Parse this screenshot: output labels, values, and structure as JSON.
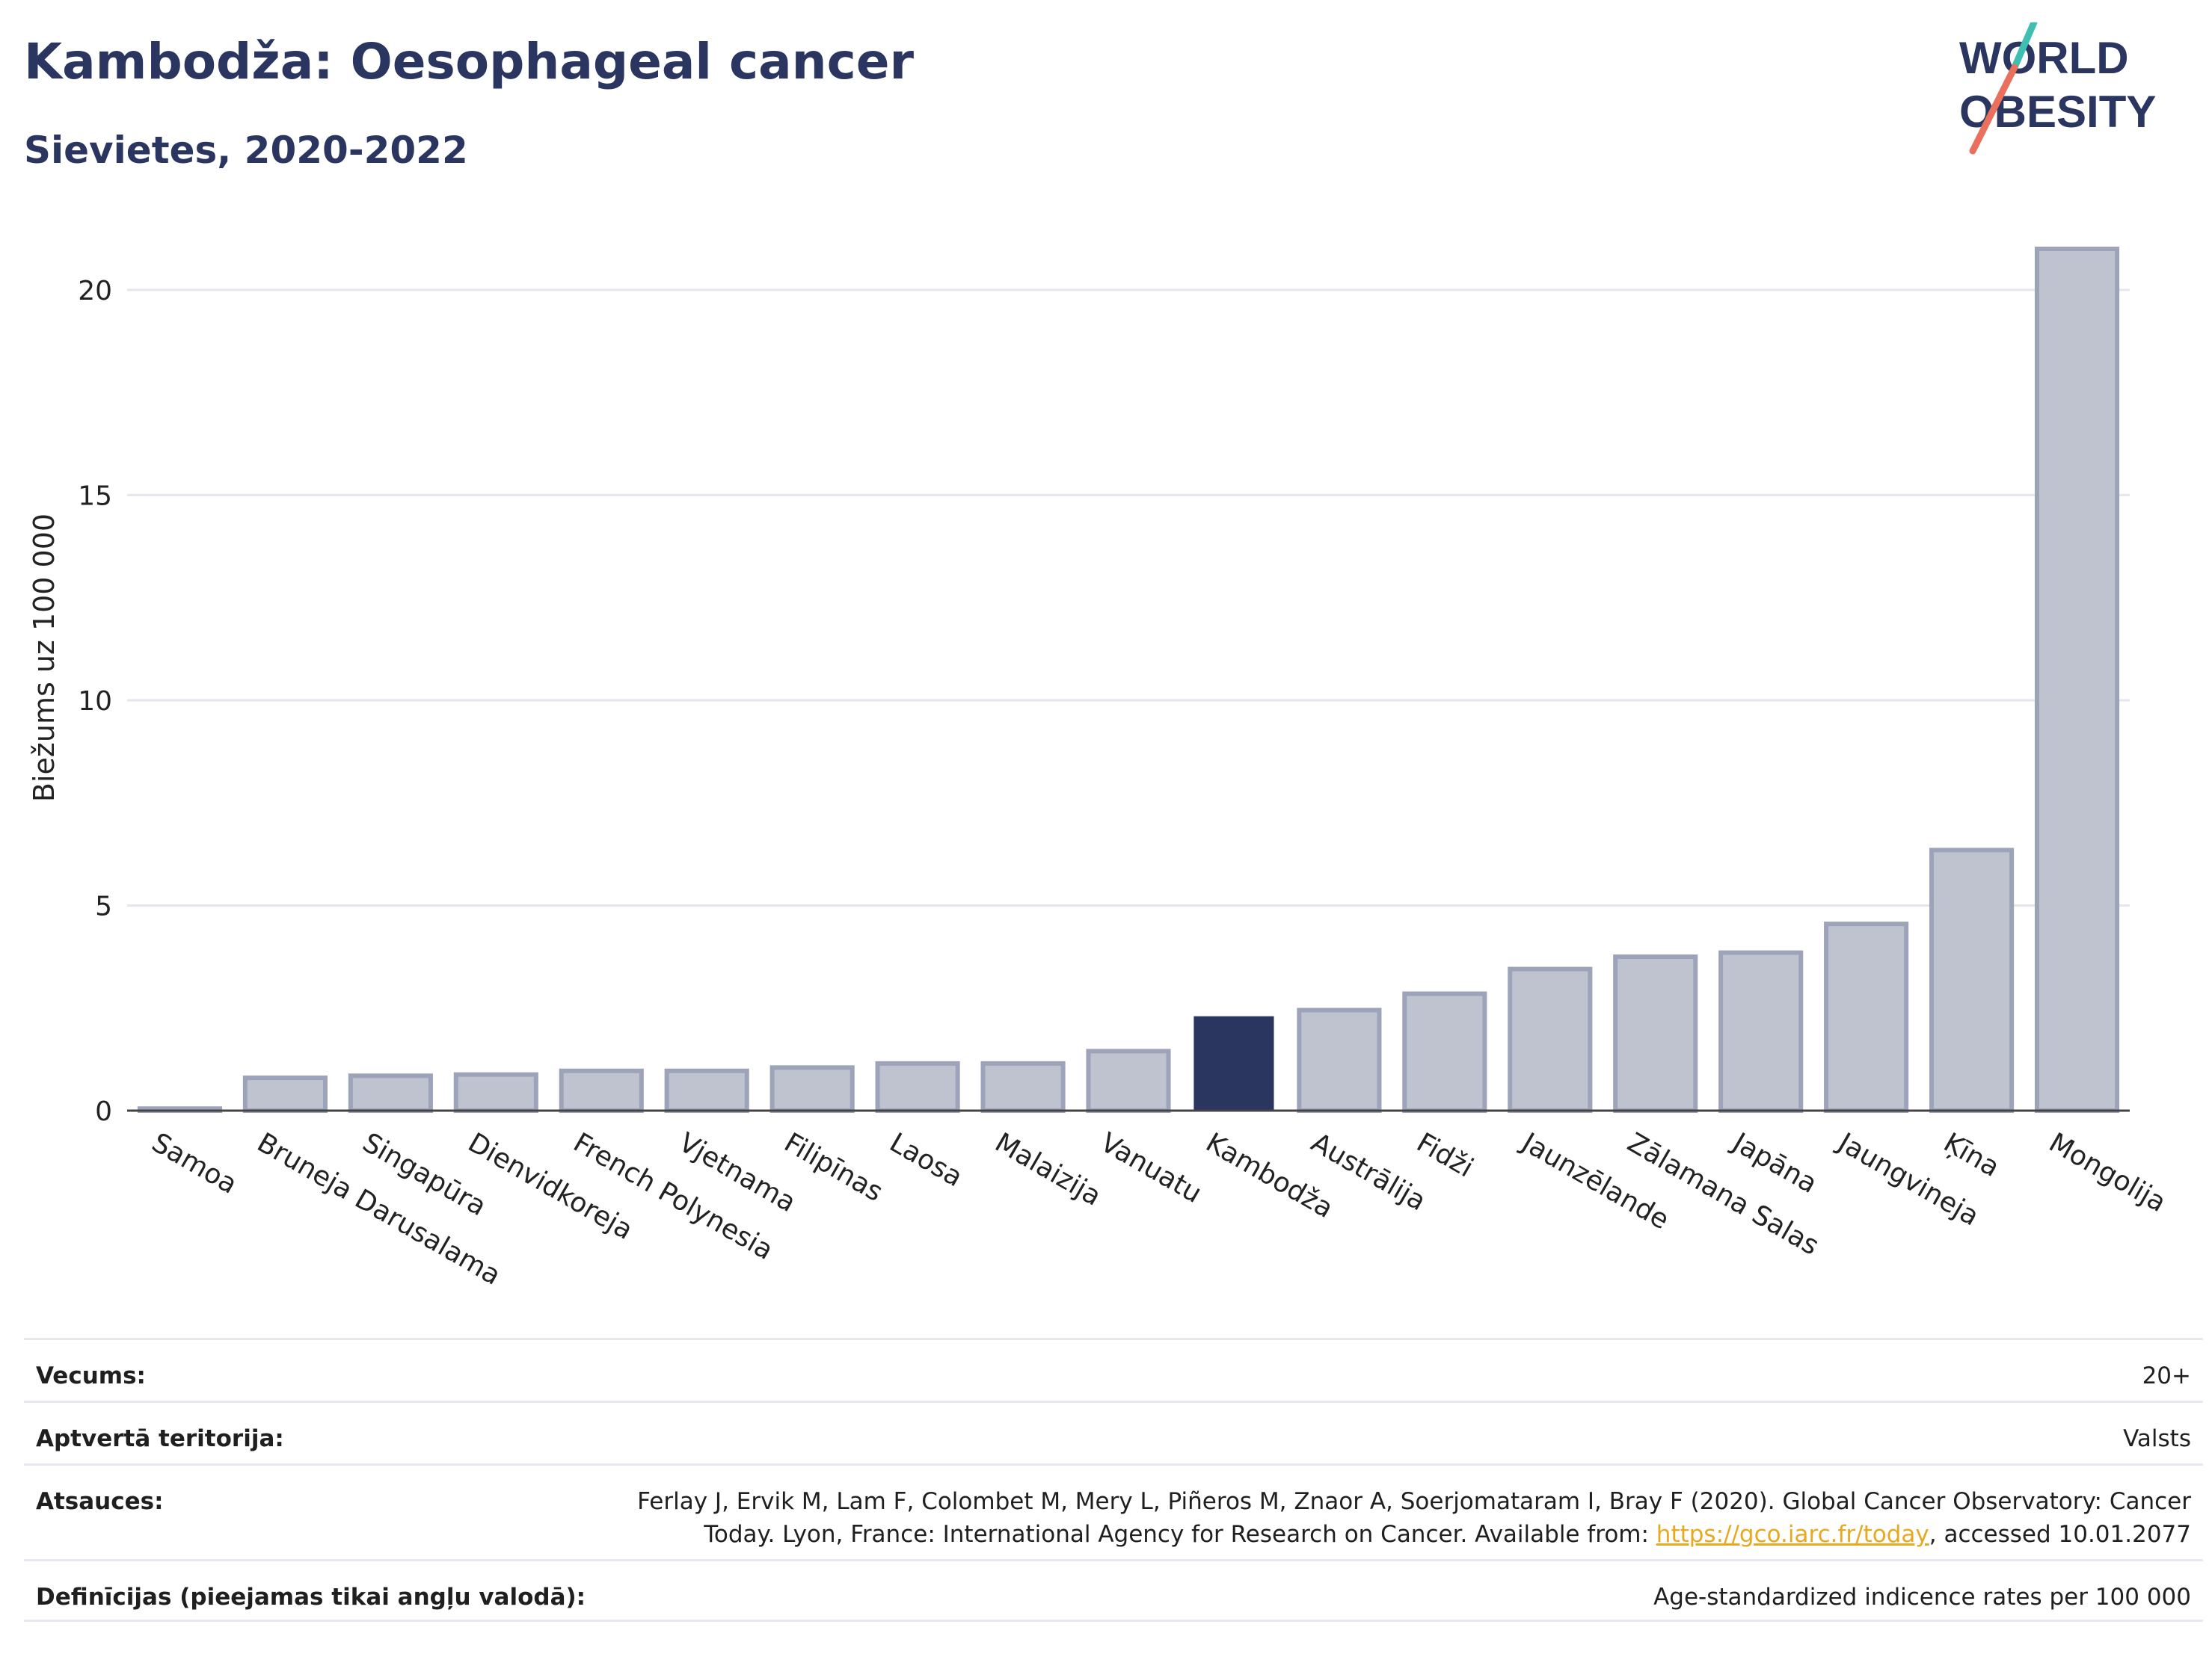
{
  "header": {
    "title": "Kambodža: Oesophageal cancer",
    "subtitle": "Sievietes, 2020-2022"
  },
  "logo": {
    "line1": "WORLD",
    "line2": "OBESITY"
  },
  "chart_data": {
    "type": "bar",
    "ylabel": "Biežums uz 100 000",
    "ylim": [
      0,
      21
    ],
    "yticks": [
      0,
      5,
      10,
      15,
      20
    ],
    "grid": true,
    "highlight": "Kambodža",
    "colors": {
      "bar": "#bfc3cf",
      "bar_border": "#9da3b8",
      "highlight": "#2a3660"
    },
    "categories": [
      "Samoa",
      "Bruneja Darusalama",
      "Singapūra",
      "Dienvidkoreja",
      "French Polynesia",
      "Vjetnama",
      "Filipīnas",
      "Laosa",
      "Malaizija",
      "Vanuatu",
      "Kambodža",
      "Austrālija",
      "Fidži",
      "Jaunzēlande",
      "Zālamana Salas",
      "Japāna",
      "Jaungvineja",
      "Ķīna",
      "Mongolija"
    ],
    "values": [
      0.05,
      0.8,
      0.85,
      0.88,
      0.97,
      0.97,
      1.05,
      1.15,
      1.15,
      1.45,
      2.3,
      2.45,
      2.85,
      3.45,
      3.75,
      3.85,
      4.55,
      6.35,
      21.0
    ]
  },
  "info": {
    "rows": [
      {
        "label": "Vecums:",
        "value": "20+"
      },
      {
        "label": "Aptvertā teritorija:",
        "value": "Valsts"
      },
      {
        "label": "Atsauces:",
        "value_pre": "Ferlay J, Ervik M, Lam F, Colombet M, Mery L, Piñeros M, Znaor A, Soerjomataram I, Bray F (2020). Global Cancer Observatory: Cancer Today. Lyon, France: International Agency for Research on Cancer. Available from: ",
        "link": "https://gco.iarc.fr/today",
        "value_post": ", accessed 10.01.2077"
      },
      {
        "label": "Definīcijas (pieejamas tikai angļu valodā):",
        "value": "Age-standardized indicence rates per 100 000"
      }
    ]
  }
}
